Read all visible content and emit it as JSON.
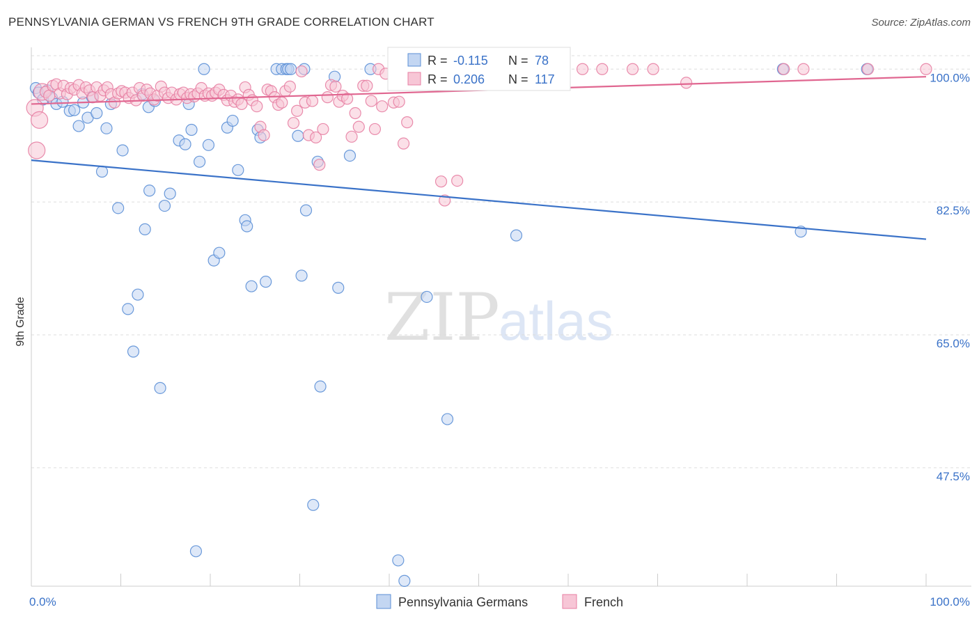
{
  "header": {
    "title": "PENNSYLVANIA GERMAN VS FRENCH 9TH GRADE CORRELATION CHART",
    "source": "Source: ZipAtlas.com"
  },
  "watermark": {
    "zip": "ZIP",
    "atlas": "atlas"
  },
  "colors": {
    "blue": "#5b8fd6",
    "blue_fill": "#c3d6f2",
    "blue_line": "#3a72c8",
    "pink": "#e77fa3",
    "pink_fill": "#f7c6d6",
    "pink_line": "#e06690",
    "grid": "#dddddd",
    "tick_text": "#3a72c8"
  },
  "stats_legend": {
    "rows": [
      {
        "r_label": "R =",
        "r_value": "-0.115",
        "n_label": "N =",
        "n_value": "78"
      },
      {
        "r_label": "R =",
        "r_value": "0.206",
        "n_label": "N =",
        "n_value": "117"
      }
    ]
  },
  "chart_data": {
    "type": "scatter",
    "xlabel": "",
    "ylabel": "9th Grade",
    "xlim": [
      0,
      100
    ],
    "ylim": [
      33,
      102.5
    ],
    "x_tick_labels": [
      "0.0%",
      "100.0%"
    ],
    "y_ticks": [
      100,
      82.5,
      65,
      47.5
    ],
    "y_tick_labels": [
      "100.0%",
      "82.5%",
      "65.0%",
      "47.5%"
    ],
    "grid": true,
    "legend": "bottom-center",
    "series": [
      {
        "name": "Pennsylvania Germans",
        "color": "#5b8fd6",
        "trend": {
          "x": [
            0,
            100
          ],
          "y": [
            88.0,
            77.6
          ]
        },
        "points": [
          [
            0.5,
            97.5
          ],
          [
            0.8,
            96.9
          ],
          [
            1.3,
            96.0
          ],
          [
            1.8,
            97.2
          ],
          [
            2.3,
            96.2
          ],
          [
            2.8,
            95.4
          ],
          [
            3.5,
            95.7
          ],
          [
            4.3,
            94.5
          ],
          [
            4.8,
            94.6
          ],
          [
            5.3,
            92.5
          ],
          [
            5.8,
            95.6
          ],
          [
            6.3,
            93.6
          ],
          [
            6.8,
            96.3
          ],
          [
            7.3,
            94.2
          ],
          [
            7.9,
            86.5
          ],
          [
            8.4,
            92.2
          ],
          [
            8.9,
            95.4
          ],
          [
            9.7,
            81.7
          ],
          [
            10.2,
            89.3
          ],
          [
            10.8,
            68.4
          ],
          [
            11.4,
            62.8
          ],
          [
            11.9,
            70.3
          ],
          [
            12.4,
            96.7
          ],
          [
            12.7,
            78.9
          ],
          [
            13.1,
            95.0
          ],
          [
            13.2,
            84.0
          ],
          [
            13.8,
            95.8
          ],
          [
            14.4,
            58.0
          ],
          [
            14.9,
            82.0
          ],
          [
            15.5,
            83.6
          ],
          [
            16.5,
            90.6
          ],
          [
            17.2,
            90.1
          ],
          [
            17.6,
            95.4
          ],
          [
            17.9,
            92.0
          ],
          [
            18.4,
            36.5
          ],
          [
            18.8,
            87.8
          ],
          [
            19.3,
            100.0
          ],
          [
            19.8,
            90.0
          ],
          [
            20.4,
            74.8
          ],
          [
            21.0,
            75.8
          ],
          [
            21.9,
            92.3
          ],
          [
            22.5,
            93.2
          ],
          [
            23.1,
            86.7
          ],
          [
            23.9,
            80.1
          ],
          [
            24.1,
            79.3
          ],
          [
            24.6,
            71.4
          ],
          [
            25.3,
            92.0
          ],
          [
            25.6,
            91.0
          ],
          [
            26.2,
            72.0
          ],
          [
            27.4,
            100.0
          ],
          [
            28.0,
            100.0
          ],
          [
            28.5,
            100.0
          ],
          [
            28.7,
            100.0
          ],
          [
            29.0,
            100.0
          ],
          [
            29.8,
            91.2
          ],
          [
            30.2,
            72.8
          ],
          [
            30.5,
            100.0
          ],
          [
            30.7,
            81.4
          ],
          [
            31.5,
            42.6
          ],
          [
            32.0,
            87.8
          ],
          [
            32.3,
            58.2
          ],
          [
            33.9,
            99.0
          ],
          [
            34.3,
            71.2
          ],
          [
            35.6,
            88.6
          ],
          [
            37.9,
            100.0
          ],
          [
            41.0,
            35.3
          ],
          [
            41.3,
            100.0
          ],
          [
            41.7,
            32.6
          ],
          [
            44.2,
            70.0
          ],
          [
            46.5,
            53.9
          ],
          [
            51.3,
            100.0
          ],
          [
            54.2,
            78.1
          ],
          [
            55.0,
            100.0
          ],
          [
            57.4,
            100.0
          ],
          [
            58.0,
            100.0
          ],
          [
            84.0,
            100.0
          ],
          [
            86.0,
            78.6
          ],
          [
            93.4,
            100.0
          ]
        ]
      },
      {
        "name": "French",
        "color": "#e77fa3",
        "trend": {
          "x": [
            0,
            100
          ],
          "y": [
            95.4,
            99.0
          ]
        },
        "points": [
          [
            0.4,
            94.9
          ],
          [
            0.6,
            89.3
          ],
          [
            0.9,
            93.3
          ],
          [
            1.2,
            97.0
          ],
          [
            1.6,
            97.0
          ],
          [
            2.0,
            96.5
          ],
          [
            2.4,
            97.8
          ],
          [
            2.8,
            98.0
          ],
          [
            3.2,
            96.8
          ],
          [
            3.6,
            97.8
          ],
          [
            4.0,
            96.7
          ],
          [
            4.4,
            97.5
          ],
          [
            4.8,
            97.3
          ],
          [
            5.3,
            97.9
          ],
          [
            5.7,
            96.8
          ],
          [
            6.1,
            97.6
          ],
          [
            6.5,
            97.2
          ],
          [
            6.9,
            96.3
          ],
          [
            7.3,
            97.6
          ],
          [
            7.7,
            96.5
          ],
          [
            8.1,
            97.2
          ],
          [
            8.5,
            97.6
          ],
          [
            8.9,
            96.7
          ],
          [
            9.3,
            95.6
          ],
          [
            9.7,
            96.8
          ],
          [
            10.1,
            97.1
          ],
          [
            10.5,
            96.9
          ],
          [
            10.9,
            96.2
          ],
          [
            11.3,
            96.9
          ],
          [
            11.7,
            95.9
          ],
          [
            12.1,
            97.5
          ],
          [
            12.5,
            96.5
          ],
          [
            12.9,
            97.3
          ],
          [
            13.3,
            96.8
          ],
          [
            13.7,
            96.0
          ],
          [
            14.1,
            96.5
          ],
          [
            14.5,
            97.7
          ],
          [
            14.9,
            96.9
          ],
          [
            15.3,
            96.2
          ],
          [
            15.7,
            96.9
          ],
          [
            16.2,
            96.0
          ],
          [
            16.6,
            96.7
          ],
          [
            17.0,
            96.9
          ],
          [
            17.4,
            96.2
          ],
          [
            17.8,
            96.7
          ],
          [
            18.2,
            96.4
          ],
          [
            18.6,
            96.8
          ],
          [
            19.0,
            97.5
          ],
          [
            19.4,
            96.5
          ],
          [
            19.8,
            96.8
          ],
          [
            20.2,
            96.5
          ],
          [
            20.6,
            96.9
          ],
          [
            21.0,
            97.3
          ],
          [
            21.5,
            96.6
          ],
          [
            21.9,
            95.9
          ],
          [
            22.3,
            96.5
          ],
          [
            22.7,
            95.7
          ],
          [
            23.1,
            96.0
          ],
          [
            23.5,
            95.4
          ],
          [
            23.9,
            97.6
          ],
          [
            24.3,
            96.6
          ],
          [
            24.7,
            95.9
          ],
          [
            25.2,
            95.1
          ],
          [
            25.6,
            92.4
          ],
          [
            26.0,
            91.3
          ],
          [
            26.4,
            97.3
          ],
          [
            26.8,
            97.1
          ],
          [
            27.2,
            96.3
          ],
          [
            27.6,
            95.3
          ],
          [
            28.0,
            95.6
          ],
          [
            28.4,
            97.1
          ],
          [
            28.9,
            97.7
          ],
          [
            29.3,
            92.9
          ],
          [
            29.7,
            94.5
          ],
          [
            30.2,
            99.7
          ],
          [
            30.6,
            95.6
          ],
          [
            31.0,
            91.3
          ],
          [
            31.4,
            95.8
          ],
          [
            31.8,
            91.0
          ],
          [
            32.2,
            87.4
          ],
          [
            32.6,
            92.1
          ],
          [
            33.1,
            96.3
          ],
          [
            33.5,
            97.9
          ],
          [
            34.0,
            97.7
          ],
          [
            34.4,
            95.7
          ],
          [
            34.8,
            96.5
          ],
          [
            35.3,
            96.1
          ],
          [
            35.8,
            91.1
          ],
          [
            36.2,
            94.2
          ],
          [
            36.6,
            92.4
          ],
          [
            37.1,
            97.8
          ],
          [
            37.5,
            97.8
          ],
          [
            38.0,
            95.8
          ],
          [
            38.4,
            92.1
          ],
          [
            38.8,
            100.0
          ],
          [
            39.2,
            95.1
          ],
          [
            39.6,
            99.4
          ],
          [
            40.5,
            95.6
          ],
          [
            41.1,
            95.7
          ],
          [
            41.6,
            90.2
          ],
          [
            42.0,
            93.0
          ],
          [
            45.8,
            85.2
          ],
          [
            46.2,
            82.7
          ],
          [
            47.6,
            85.3
          ],
          [
            52.3,
            100.0
          ],
          [
            53.6,
            100.0
          ],
          [
            56.9,
            100.0
          ],
          [
            57.6,
            100.0
          ],
          [
            61.6,
            100.0
          ],
          [
            63.8,
            100.0
          ],
          [
            67.2,
            100.0
          ],
          [
            69.5,
            100.0
          ],
          [
            73.2,
            98.2
          ],
          [
            84.1,
            100.0
          ],
          [
            86.3,
            100.0
          ],
          [
            93.5,
            100.0
          ],
          [
            100.0,
            100.0
          ]
        ]
      }
    ]
  }
}
